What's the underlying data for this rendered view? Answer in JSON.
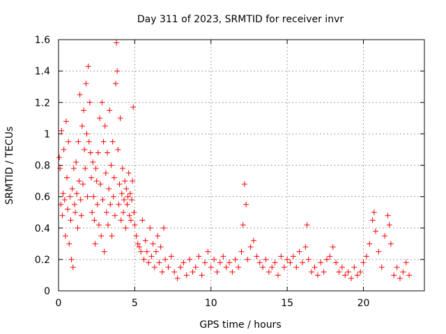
{
  "chart_data": {
    "type": "scatter",
    "title": "Day 311 of 2023, SRMTID for receiver invr",
    "xlabel": "GPS time / hours",
    "ylabel": "SRMTID / TECUs",
    "xlim": [
      0,
      24
    ],
    "ylim": [
      0,
      1.6
    ],
    "x_ticks": [
      0,
      5,
      10,
      15,
      20
    ],
    "x_tick_labels": [
      "0",
      "5",
      "10",
      "15",
      "20"
    ],
    "y_ticks": [
      0,
      0.2,
      0.4,
      0.6,
      0.8,
      1.0,
      1.2,
      1.4,
      1.6
    ],
    "y_tick_labels": [
      "0",
      "0.2",
      "0.4",
      "0.6",
      "0.8",
      "1",
      "1.2",
      "1.4",
      "1.6"
    ],
    "grid": true,
    "marker": "+",
    "color": "#ff0000",
    "series": [
      {
        "name": "SRMTID",
        "points": [
          [
            0.05,
            0.85
          ],
          [
            0.1,
            0.78
          ],
          [
            0.15,
            0.55
          ],
          [
            0.2,
            1.02
          ],
          [
            0.25,
            0.48
          ],
          [
            0.3,
            0.62
          ],
          [
            0.35,
            0.9
          ],
          [
            0.4,
            0.58
          ],
          [
            0.45,
            0.35
          ],
          [
            0.5,
            1.08
          ],
          [
            0.55,
            0.72
          ],
          [
            0.6,
            0.52
          ],
          [
            0.65,
            0.95
          ],
          [
            0.7,
            0.3
          ],
          [
            0.75,
            0.6
          ],
          [
            0.8,
            0.45
          ],
          [
            0.85,
            0.2
          ],
          [
            0.9,
            0.65
          ],
          [
            0.95,
            0.15
          ],
          [
            1.0,
            0.78
          ],
          [
            1.05,
            0.55
          ],
          [
            1.1,
            0.5
          ],
          [
            1.15,
            0.82
          ],
          [
            1.2,
            0.62
          ],
          [
            1.25,
            0.4
          ],
          [
            1.3,
            0.95
          ],
          [
            1.35,
            0.7
          ],
          [
            1.4,
            1.25
          ],
          [
            1.45,
            0.58
          ],
          [
            1.5,
            0.48
          ],
          [
            1.55,
            1.05
          ],
          [
            1.6,
            0.68
          ],
          [
            1.65,
            1.15
          ],
          [
            1.7,
            0.9
          ],
          [
            1.75,
            0.78
          ],
          [
            1.8,
            1.32
          ],
          [
            1.85,
            1.0
          ],
          [
            1.9,
            0.6
          ],
          [
            1.95,
            1.43
          ],
          [
            2.0,
            0.95
          ],
          [
            2.05,
            1.2
          ],
          [
            2.1,
            0.88
          ],
          [
            2.15,
            0.72
          ],
          [
            2.2,
            0.5
          ],
          [
            2.25,
            0.82
          ],
          [
            2.3,
            0.6
          ],
          [
            2.35,
            0.45
          ],
          [
            2.4,
            0.3
          ],
          [
            2.45,
            0.78
          ],
          [
            2.5,
            0.7
          ],
          [
            2.55,
            0.55
          ],
          [
            2.6,
            0.88
          ],
          [
            2.65,
            0.42
          ],
          [
            2.7,
            1.1
          ],
          [
            2.75,
            0.68
          ],
          [
            2.8,
            0.35
          ],
          [
            2.85,
            1.2
          ],
          [
            2.9,
            0.58
          ],
          [
            2.95,
            0.95
          ],
          [
            3.0,
            0.25
          ],
          [
            3.05,
            1.05
          ],
          [
            3.1,
            0.75
          ],
          [
            3.15,
            0.5
          ],
          [
            3.2,
            0.88
          ],
          [
            3.25,
            0.42
          ],
          [
            3.3,
            0.65
          ],
          [
            3.35,
            1.15
          ],
          [
            3.4,
            0.55
          ],
          [
            3.45,
            0.8
          ],
          [
            3.5,
            0.35
          ],
          [
            3.55,
            0.95
          ],
          [
            3.6,
            0.6
          ],
          [
            3.65,
            0.72
          ],
          [
            3.7,
            0.48
          ],
          [
            3.75,
            1.32
          ],
          [
            3.8,
            1.58
          ],
          [
            3.85,
            1.4
          ],
          [
            3.9,
            0.9
          ],
          [
            3.95,
            0.55
          ],
          [
            4.0,
            0.68
          ],
          [
            4.05,
            1.1
          ],
          [
            4.1,
            0.45
          ],
          [
            4.15,
            0.62
          ],
          [
            4.2,
            0.78
          ],
          [
            4.25,
            0.5
          ],
          [
            4.3,
            0.58
          ],
          [
            4.35,
            0.7
          ],
          [
            4.4,
            0.4
          ],
          [
            4.45,
            0.65
          ],
          [
            4.5,
            0.55
          ],
          [
            4.55,
            0.6
          ],
          [
            4.6,
            0.75
          ],
          [
            4.65,
            0.48
          ],
          [
            4.7,
            0.62
          ],
          [
            4.75,
            0.45
          ],
          [
            4.8,
            0.58
          ],
          [
            4.85,
            0.7
          ],
          [
            4.9,
            1.17
          ],
          [
            4.95,
            0.5
          ],
          [
            5.0,
            0.42
          ],
          [
            5.1,
            0.35
          ],
          [
            5.2,
            0.3
          ],
          [
            5.3,
            0.28
          ],
          [
            5.4,
            0.25
          ],
          [
            5.5,
            0.45
          ],
          [
            5.6,
            0.2
          ],
          [
            5.7,
            0.32
          ],
          [
            5.8,
            0.25
          ],
          [
            5.9,
            0.18
          ],
          [
            6.0,
            0.4
          ],
          [
            6.1,
            0.22
          ],
          [
            6.2,
            0.3
          ],
          [
            6.3,
            0.15
          ],
          [
            6.4,
            0.25
          ],
          [
            6.5,
            0.35
          ],
          [
            6.6,
            0.18
          ],
          [
            6.7,
            0.28
          ],
          [
            6.8,
            0.12
          ],
          [
            6.9,
            0.4
          ],
          [
            7.0,
            0.2
          ],
          [
            7.2,
            0.15
          ],
          [
            7.4,
            0.22
          ],
          [
            7.6,
            0.12
          ],
          [
            7.8,
            0.08
          ],
          [
            8.0,
            0.15
          ],
          [
            8.2,
            0.18
          ],
          [
            8.4,
            0.1
          ],
          [
            8.6,
            0.2
          ],
          [
            8.8,
            0.12
          ],
          [
            9.0,
            0.15
          ],
          [
            9.2,
            0.22
          ],
          [
            9.4,
            0.1
          ],
          [
            9.6,
            0.18
          ],
          [
            9.8,
            0.25
          ],
          [
            10.0,
            0.15
          ],
          [
            10.2,
            0.2
          ],
          [
            10.4,
            0.12
          ],
          [
            10.6,
            0.18
          ],
          [
            10.8,
            0.22
          ],
          [
            11.0,
            0.15
          ],
          [
            11.2,
            0.18
          ],
          [
            11.4,
            0.12
          ],
          [
            11.6,
            0.2
          ],
          [
            11.8,
            0.15
          ],
          [
            12.0,
            0.25
          ],
          [
            12.1,
            0.42
          ],
          [
            12.2,
            0.68
          ],
          [
            12.3,
            0.55
          ],
          [
            12.4,
            0.2
          ],
          [
            12.6,
            0.28
          ],
          [
            12.8,
            0.32
          ],
          [
            13.0,
            0.22
          ],
          [
            13.2,
            0.18
          ],
          [
            13.4,
            0.15
          ],
          [
            13.6,
            0.2
          ],
          [
            13.8,
            0.12
          ],
          [
            14.0,
            0.15
          ],
          [
            14.2,
            0.18
          ],
          [
            14.4,
            0.1
          ],
          [
            14.6,
            0.22
          ],
          [
            14.8,
            0.15
          ],
          [
            15.0,
            0.2
          ],
          [
            15.2,
            0.18
          ],
          [
            15.4,
            0.22
          ],
          [
            15.6,
            0.15
          ],
          [
            15.8,
            0.25
          ],
          [
            16.0,
            0.18
          ],
          [
            16.2,
            0.28
          ],
          [
            16.3,
            0.42
          ],
          [
            16.4,
            0.2
          ],
          [
            16.6,
            0.12
          ],
          [
            16.8,
            0.15
          ],
          [
            17.0,
            0.1
          ],
          [
            17.2,
            0.18
          ],
          [
            17.4,
            0.12
          ],
          [
            17.6,
            0.2
          ],
          [
            17.8,
            0.22
          ],
          [
            18.0,
            0.28
          ],
          [
            18.2,
            0.18
          ],
          [
            18.4,
            0.12
          ],
          [
            18.6,
            0.15
          ],
          [
            18.8,
            0.1
          ],
          [
            19.0,
            0.12
          ],
          [
            19.2,
            0.08
          ],
          [
            19.4,
            0.15
          ],
          [
            19.6,
            0.1
          ],
          [
            19.8,
            0.12
          ],
          [
            20.0,
            0.18
          ],
          [
            20.2,
            0.22
          ],
          [
            20.4,
            0.3
          ],
          [
            20.6,
            0.45
          ],
          [
            20.7,
            0.5
          ],
          [
            20.8,
            0.38
          ],
          [
            21.0,
            0.25
          ],
          [
            21.2,
            0.15
          ],
          [
            21.4,
            0.35
          ],
          [
            21.6,
            0.48
          ],
          [
            21.7,
            0.42
          ],
          [
            21.8,
            0.3
          ],
          [
            22.0,
            0.1
          ],
          [
            22.2,
            0.15
          ],
          [
            22.4,
            0.08
          ],
          [
            22.6,
            0.12
          ],
          [
            22.8,
            0.18
          ],
          [
            23.0,
            0.1
          ]
        ]
      }
    ]
  }
}
